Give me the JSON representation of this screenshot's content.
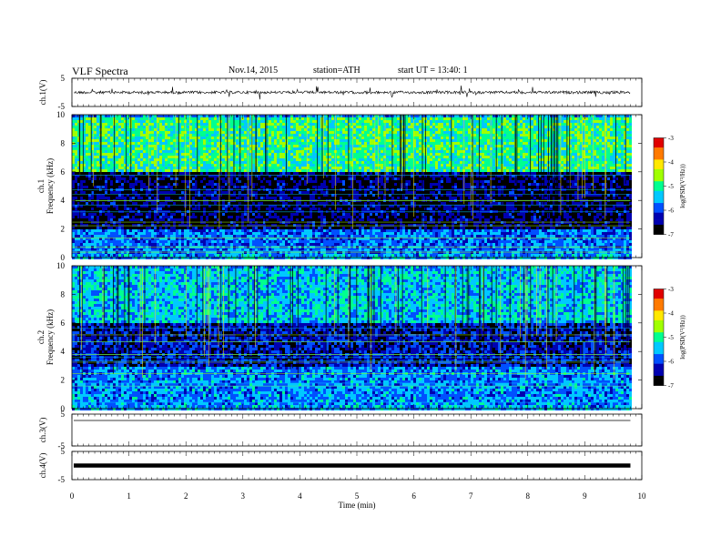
{
  "header": {
    "title": "VLF  Spectra",
    "date": "Nov.14, 2015",
    "station": "station=ATH",
    "start": "start  UT  =   13:40: 1"
  },
  "colors": {
    "spectrum_scale": [
      "#000000",
      "#0000b0",
      "#0050ff",
      "#00c8ff",
      "#00ff90",
      "#a0ff00",
      "#ffe800",
      "#ff7a00",
      "#e00000",
      "#ffffff"
    ]
  },
  "chart_data": [
    {
      "type": "line",
      "panel": "ch1-waveform",
      "ylabel": "ch.1(V)",
      "yticks": [
        "5",
        "-5"
      ],
      "ylim": [
        -5,
        5
      ],
      "xlim": [
        0,
        10
      ],
      "baseline_value": 0,
      "trace_end_min": 9.8
    },
    {
      "type": "heatmap",
      "panel": "ch1-spectrogram",
      "ylabel_channel": "ch.1",
      "ylabel": "Frequency  (kHz)",
      "yticks": [
        "0",
        "2",
        "4",
        "6",
        "8",
        "10"
      ],
      "ylim": [
        0,
        10
      ],
      "xlim": [
        0,
        10
      ],
      "data_end_min": 9.8,
      "colorbar": {
        "label": "log(PSD(V²/Hz))",
        "ticks": [
          "-3",
          "-4",
          "-5",
          "-6",
          "-7"
        ],
        "range": [
          -7,
          -3
        ]
      },
      "bands_khz": [
        {
          "from": 0,
          "to": 0.4,
          "level": -5.6
        },
        {
          "from": 0.4,
          "to": 2.0,
          "level": -5.8
        },
        {
          "from": 2.0,
          "to": 6.0,
          "level": -6.6
        },
        {
          "from": 6.0,
          "to": 10.0,
          "level": -5.0
        }
      ]
    },
    {
      "type": "heatmap",
      "panel": "ch2-spectrogram",
      "ylabel_channel": "ch.2",
      "ylabel": "Frequency  (kHz)",
      "yticks": [
        "0",
        "2",
        "4",
        "6",
        "8",
        "10"
      ],
      "ylim": [
        0,
        10
      ],
      "xlim": [
        0,
        10
      ],
      "data_end_min": 9.8,
      "colorbar": {
        "label": "log(PSD(V²/Hz))",
        "ticks": [
          "-3",
          "-4",
          "-5",
          "-6",
          "-7"
        ],
        "range": [
          -7,
          -3
        ]
      },
      "bands_khz": [
        {
          "from": 0,
          "to": 0.4,
          "level": -5.6
        },
        {
          "from": 0.4,
          "to": 3.0,
          "level": -5.7
        },
        {
          "from": 3.0,
          "to": 6.0,
          "level": -6.3
        },
        {
          "from": 6.0,
          "to": 10.0,
          "level": -5.4
        }
      ]
    },
    {
      "type": "line",
      "panel": "ch3-waveform",
      "ylabel": "ch.3(V)",
      "yticks": [
        "5",
        "-5"
      ],
      "ylim": [
        -5,
        5
      ],
      "xlim": [
        0,
        10
      ],
      "baseline_value": 3,
      "trace_end_min": 9.8
    },
    {
      "type": "line",
      "panel": "ch4-waveform",
      "ylabel": "ch.4(V)",
      "yticks": [
        "5",
        "-5"
      ],
      "ylim": [
        -5,
        5
      ],
      "xlim": [
        0,
        10
      ],
      "baseline_value": 0,
      "trace_end_min": 9.8
    }
  ],
  "x_axis": {
    "label": "Time  (min)",
    "ticks": [
      "0",
      "1",
      "2",
      "3",
      "4",
      "5",
      "6",
      "7",
      "8",
      "9",
      "10"
    ],
    "range": [
      0,
      10
    ]
  }
}
